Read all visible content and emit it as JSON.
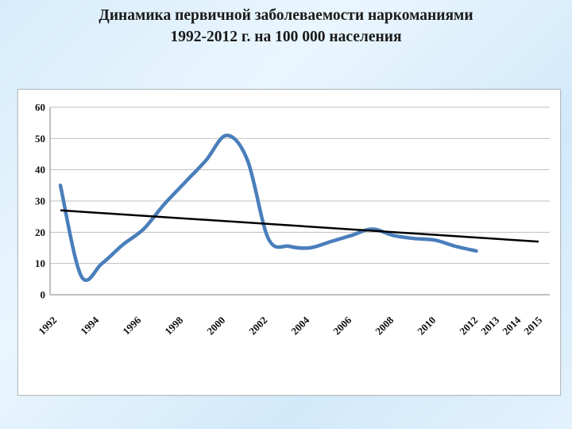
{
  "title": {
    "line1": "Динамика первичной заболеваемости наркоманиями",
    "line2": "1992-2012 г. на 100 000 населения"
  },
  "colors": {
    "series": "#4a7ebb",
    "trend": "#000000",
    "grid": "#bfbfbf",
    "axis": "#808080"
  },
  "chart_data": {
    "type": "line",
    "title": "",
    "xlabel": "",
    "ylabel": "",
    "xlim": [
      1992,
      2015
    ],
    "ylim": [
      0,
      60
    ],
    "y_ticks": [
      0,
      10,
      20,
      30,
      40,
      50,
      60
    ],
    "x_tick_labels": [
      "1992",
      "1994",
      "1996",
      "1998",
      "2000",
      "2002",
      "2004",
      "2006",
      "2008",
      "2010",
      "2012",
      "2013",
      "2014",
      "2015"
    ],
    "grid": true,
    "legend": "none",
    "series": [
      {
        "x": [
          1992,
          1993,
          1994,
          1995,
          1996,
          1997,
          1998,
          1999,
          2000,
          2001,
          2002,
          2003,
          2004,
          2005,
          2006,
          2007,
          2008,
          2009,
          2010,
          2011,
          2012
        ],
        "y": [
          35,
          6,
          10,
          16,
          21,
          29,
          36,
          43,
          51,
          43,
          18,
          15.5,
          15,
          17,
          19,
          21,
          19,
          18,
          17.5,
          15.5,
          14
        ]
      }
    ],
    "trendline": {
      "x": [
        1992,
        2015
      ],
      "y": [
        27,
        17
      ]
    }
  }
}
